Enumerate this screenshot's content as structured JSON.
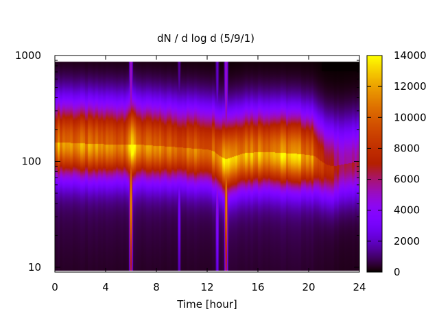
{
  "chart_data": {
    "type": "heatmap",
    "title": "dN / d log d (5/9/1)",
    "xlabel": "Time [hour]",
    "ylabel": "",
    "x_ticks": [
      0,
      4,
      8,
      12,
      16,
      20,
      24
    ],
    "xlim": [
      0,
      24
    ],
    "y_scale": "log",
    "y_ticks": [
      10,
      100,
      1000
    ],
    "ylim": [
      9,
      1000
    ],
    "data_y_range": [
      9.3,
      880
    ],
    "colorbar": {
      "range": [
        0,
        14000
      ],
      "ticks": [
        0,
        2000,
        4000,
        6000,
        8000,
        10000,
        12000,
        14000
      ],
      "palette": "black-blue-purple-red-orange-yellow"
    },
    "band": {
      "x": [
        0,
        1,
        2,
        3,
        4,
        5,
        5.5,
        6,
        7,
        8,
        9,
        10,
        11,
        12,
        12.5,
        13,
        13.5,
        14,
        15,
        16,
        17,
        18,
        19,
        20,
        20.5,
        21,
        21.5,
        22,
        23,
        24
      ],
      "center_diameter": [
        150,
        150,
        148,
        146,
        145,
        145,
        145,
        145,
        143,
        140,
        138,
        135,
        132,
        130,
        125,
        112,
        105,
        110,
        120,
        122,
        122,
        120,
        118,
        115,
        112,
        100,
        92,
        90,
        95,
        100
      ],
      "peak_value": [
        10500,
        10200,
        10000,
        9900,
        9800,
        9800,
        10000,
        12200,
        9600,
        9500,
        9400,
        9300,
        9400,
        9500,
        10000,
        11000,
        12300,
        11500,
        11200,
        11000,
        11000,
        11200,
        11000,
        10500,
        9500,
        7500,
        6800,
        6300,
        5500,
        5200
      ]
    },
    "spikes": [
      {
        "x": 6.0,
        "peak_value": 12500
      },
      {
        "x": 13.5,
        "peak_value": 12300
      },
      {
        "x": 9.8,
        "peak_value": 3500
      },
      {
        "x": 12.8,
        "peak_value": 5000
      }
    ]
  }
}
